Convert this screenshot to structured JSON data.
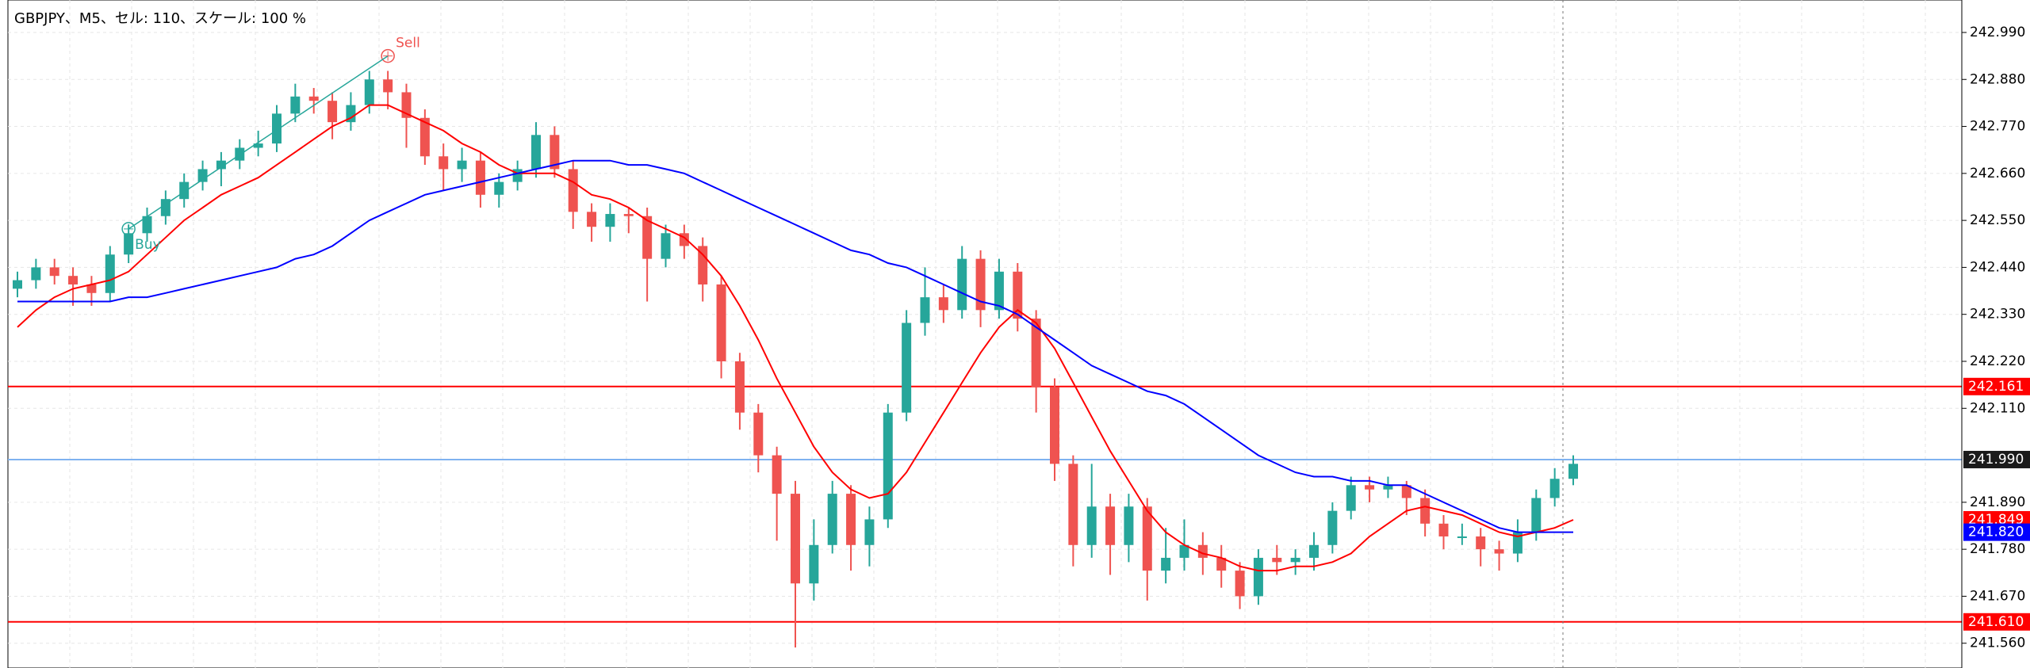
{
  "chart_data": {
    "type": "candlestick",
    "title": "GBPJPY、M5、セル: 110、スケール: 100 %",
    "ylim": [
      241.502,
      243.066
    ],
    "yticks": [
      {
        "value": 242.99,
        "label": "242.990"
      },
      {
        "value": 242.88,
        "label": "242.880"
      },
      {
        "value": 242.77,
        "label": "242.770"
      },
      {
        "value": 242.66,
        "label": "242.660"
      },
      {
        "value": 242.55,
        "label": "242.550"
      },
      {
        "value": 242.44,
        "label": "242.440"
      },
      {
        "value": 242.33,
        "label": "242.330"
      },
      {
        "value": 242.22,
        "label": "242.220"
      },
      {
        "value": 242.11,
        "label": "242.110"
      },
      {
        "value": 241.89,
        "label": "241.890"
      },
      {
        "value": 241.78,
        "label": "241.780"
      },
      {
        "value": 241.67,
        "label": "241.670"
      },
      {
        "value": 241.56,
        "label": "241.560"
      }
    ],
    "grid": true,
    "up_color": "#26a69a",
    "down_color": "#ef5350",
    "candles": {
      "open": [
        242.39,
        242.41,
        242.44,
        242.42,
        242.4,
        242.38,
        242.47,
        242.52,
        242.56,
        242.6,
        242.64,
        242.67,
        242.69,
        242.72,
        242.73,
        242.8,
        242.84,
        242.83,
        242.78,
        242.82,
        242.88,
        242.85,
        242.79,
        242.7,
        242.67,
        242.69,
        242.61,
        242.64,
        242.67,
        242.75,
        242.67,
        242.57,
        242.535,
        242.565,
        242.56,
        242.46,
        242.52,
        242.49,
        242.4,
        242.22,
        242.1,
        242.0,
        241.91,
        241.7,
        241.79,
        241.91,
        241.79,
        241.85,
        242.1,
        242.31,
        242.37,
        242.34,
        242.46,
        242.34,
        242.43,
        242.32,
        242.16,
        241.98,
        241.79,
        241.88,
        241.79,
        241.88,
        241.73,
        241.76,
        241.79,
        241.76,
        241.73,
        241.67,
        241.76,
        241.75,
        241.76,
        241.79,
        241.87,
        241.93,
        241.92,
        241.93,
        241.9,
        241.84,
        241.81,
        241.81,
        241.78,
        241.77,
        241.82,
        241.9,
        241.945
      ],
      "high": [
        242.43,
        242.46,
        242.46,
        242.44,
        242.42,
        242.49,
        242.54,
        242.58,
        242.62,
        242.66,
        242.69,
        242.71,
        242.74,
        242.76,
        242.82,
        242.87,
        242.86,
        242.85,
        242.85,
        242.9,
        242.9,
        242.87,
        242.81,
        242.73,
        242.72,
        242.71,
        242.66,
        242.69,
        242.78,
        242.77,
        242.69,
        242.59,
        242.59,
        242.58,
        242.58,
        242.54,
        242.54,
        242.51,
        242.42,
        242.24,
        242.12,
        242.02,
        241.94,
        241.85,
        241.94,
        241.93,
        241.88,
        242.12,
        242.34,
        242.44,
        242.4,
        242.49,
        242.48,
        242.46,
        242.45,
        242.34,
        242.18,
        242.0,
        241.98,
        241.91,
        241.91,
        241.9,
        241.83,
        241.85,
        241.82,
        241.79,
        241.75,
        241.78,
        241.79,
        241.78,
        241.82,
        241.89,
        241.95,
        241.95,
        241.95,
        241.94,
        241.92,
        241.86,
        241.84,
        241.83,
        241.8,
        241.85,
        241.92,
        241.97,
        242.0
      ],
      "low": [
        242.37,
        242.39,
        242.4,
        242.35,
        242.35,
        242.36,
        242.45,
        242.5,
        242.54,
        242.58,
        242.62,
        242.63,
        242.67,
        242.7,
        242.71,
        242.78,
        242.8,
        242.74,
        242.76,
        242.8,
        242.81,
        242.72,
        242.68,
        242.62,
        242.64,
        242.58,
        242.58,
        242.62,
        242.65,
        242.65,
        242.53,
        242.5,
        242.5,
        242.52,
        242.36,
        242.44,
        242.46,
        242.36,
        242.18,
        242.06,
        241.96,
        241.8,
        241.55,
        241.66,
        241.77,
        241.73,
        241.74,
        241.83,
        242.08,
        242.28,
        242.31,
        242.32,
        242.3,
        242.32,
        242.29,
        242.1,
        241.94,
        241.74,
        241.76,
        241.72,
        241.75,
        241.66,
        241.7,
        241.73,
        241.72,
        241.69,
        241.64,
        241.65,
        241.72,
        241.72,
        241.73,
        241.77,
        241.85,
        241.89,
        241.9,
        241.86,
        241.81,
        241.78,
        241.79,
        241.74,
        241.73,
        241.75,
        241.8,
        241.88,
        241.93
      ],
      "close": [
        242.41,
        242.44,
        242.42,
        242.4,
        242.38,
        242.47,
        242.52,
        242.56,
        242.6,
        242.64,
        242.67,
        242.69,
        242.72,
        242.73,
        242.8,
        242.84,
        242.83,
        242.78,
        242.82,
        242.88,
        242.85,
        242.79,
        242.7,
        242.67,
        242.69,
        242.61,
        242.64,
        242.67,
        242.75,
        242.67,
        242.57,
        242.535,
        242.565,
        242.56,
        242.46,
        242.52,
        242.49,
        242.4,
        242.22,
        242.1,
        242.0,
        241.91,
        241.7,
        241.79,
        241.91,
        241.79,
        241.85,
        242.1,
        242.31,
        242.37,
        242.34,
        242.46,
        242.34,
        242.43,
        242.32,
        242.16,
        241.98,
        241.79,
        241.88,
        241.79,
        241.88,
        241.73,
        241.76,
        241.79,
        241.76,
        241.73,
        241.67,
        241.76,
        241.75,
        241.76,
        241.79,
        241.87,
        241.93,
        241.92,
        241.93,
        241.9,
        241.84,
        241.81,
        241.81,
        241.78,
        241.77,
        241.82,
        241.9,
        241.945,
        241.98
      ]
    },
    "moving_averages": [
      {
        "color": "#ff0000",
        "values": [
          242.3,
          242.34,
          242.37,
          242.39,
          242.4,
          242.41,
          242.43,
          242.47,
          242.51,
          242.55,
          242.58,
          242.61,
          242.63,
          242.65,
          242.68,
          242.71,
          242.74,
          242.77,
          242.79,
          242.82,
          242.82,
          242.8,
          242.78,
          242.76,
          242.73,
          242.71,
          242.68,
          242.66,
          242.66,
          242.66,
          242.64,
          242.61,
          242.6,
          242.58,
          242.55,
          242.53,
          242.51,
          242.47,
          242.42,
          242.35,
          242.27,
          242.18,
          242.1,
          242.02,
          241.96,
          241.92,
          241.9,
          241.91,
          241.96,
          242.03,
          242.1,
          242.17,
          242.24,
          242.3,
          242.34,
          242.31,
          242.25,
          242.17,
          242.09,
          242.01,
          241.94,
          241.87,
          241.82,
          241.79,
          241.77,
          241.76,
          241.74,
          241.73,
          241.73,
          241.74,
          241.74,
          241.75,
          241.77,
          241.81,
          241.84,
          241.87,
          241.88,
          241.87,
          241.86,
          241.84,
          241.82,
          241.81,
          241.82,
          241.83,
          241.849
        ]
      },
      {
        "color": "#0000ff",
        "last_value_label": "241.820",
        "values": [
          242.36,
          242.36,
          242.36,
          242.36,
          242.36,
          242.36,
          242.37,
          242.37,
          242.38,
          242.39,
          242.4,
          242.41,
          242.42,
          242.43,
          242.44,
          242.46,
          242.47,
          242.49,
          242.52,
          242.55,
          242.57,
          242.59,
          242.61,
          242.62,
          242.63,
          242.64,
          242.65,
          242.66,
          242.67,
          242.68,
          242.69,
          242.69,
          242.69,
          242.68,
          242.68,
          242.67,
          242.66,
          242.64,
          242.62,
          242.6,
          242.58,
          242.56,
          242.54,
          242.52,
          242.5,
          242.48,
          242.47,
          242.45,
          242.44,
          242.42,
          242.4,
          242.38,
          242.36,
          242.35,
          242.33,
          242.3,
          242.27,
          242.24,
          242.21,
          242.19,
          242.17,
          242.15,
          242.14,
          242.12,
          242.09,
          242.06,
          242.03,
          242.0,
          241.98,
          241.96,
          241.95,
          241.95,
          241.94,
          241.94,
          241.93,
          241.93,
          241.91,
          241.89,
          241.87,
          241.85,
          241.83,
          241.82,
          241.82,
          241.82,
          241.82
        ]
      }
    ],
    "levels": [
      {
        "value": 242.161,
        "color": "#ff0000",
        "box_color": "#ff0000"
      },
      {
        "value": 241.99,
        "value_label": "241.990",
        "color": "#7fb2f0",
        "box_color": "#1a1a1a"
      },
      {
        "value": 241.61,
        "value_label": "241.610",
        "color": "#ff0000",
        "box_color": "#ff0000"
      }
    ],
    "signals": [
      {
        "label": "Buy",
        "x": 6,
        "price": 242.53,
        "color": "#26a69a"
      },
      {
        "label": "Sell",
        "x": 20,
        "price": 242.935,
        "color": "#ef5350"
      }
    ]
  }
}
